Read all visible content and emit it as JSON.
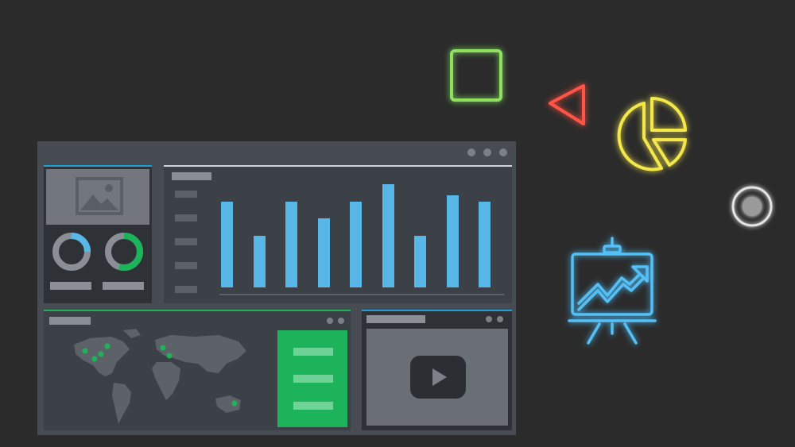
{
  "colors": {
    "background": "#2b2b2b",
    "window": "#474c52",
    "panel": "#3c4147",
    "bar_blue": "#58b7e6",
    "accent_green": "#1db35b",
    "neon_green": "#7fd34e",
    "neon_red": "#f2463a",
    "neon_yellow": "#f0e33f",
    "neon_blue": "#4cb8f0"
  },
  "chart_data": {
    "type": "bar",
    "values": [
      10,
      6,
      10,
      8,
      10,
      12,
      6,
      10.7,
      10
    ]
  },
  "donuts": [
    {
      "fill_fraction": 0.25,
      "color": "#58b7e6"
    },
    {
      "fill_fraction": 0.55,
      "color": "#1db35b"
    }
  ],
  "map_markers": 7,
  "icons": {
    "window_controls": [
      "window-dot-icon",
      "window-dot-icon",
      "window-dot-icon"
    ],
    "image_placeholder": "image-icon",
    "play": "play-icon",
    "square": "square-outline-icon",
    "triangle": "triangle-outline-icon",
    "pie": "pie-chart-icon",
    "radio": "radio-button-icon",
    "presentation": "presentation-chart-icon"
  }
}
